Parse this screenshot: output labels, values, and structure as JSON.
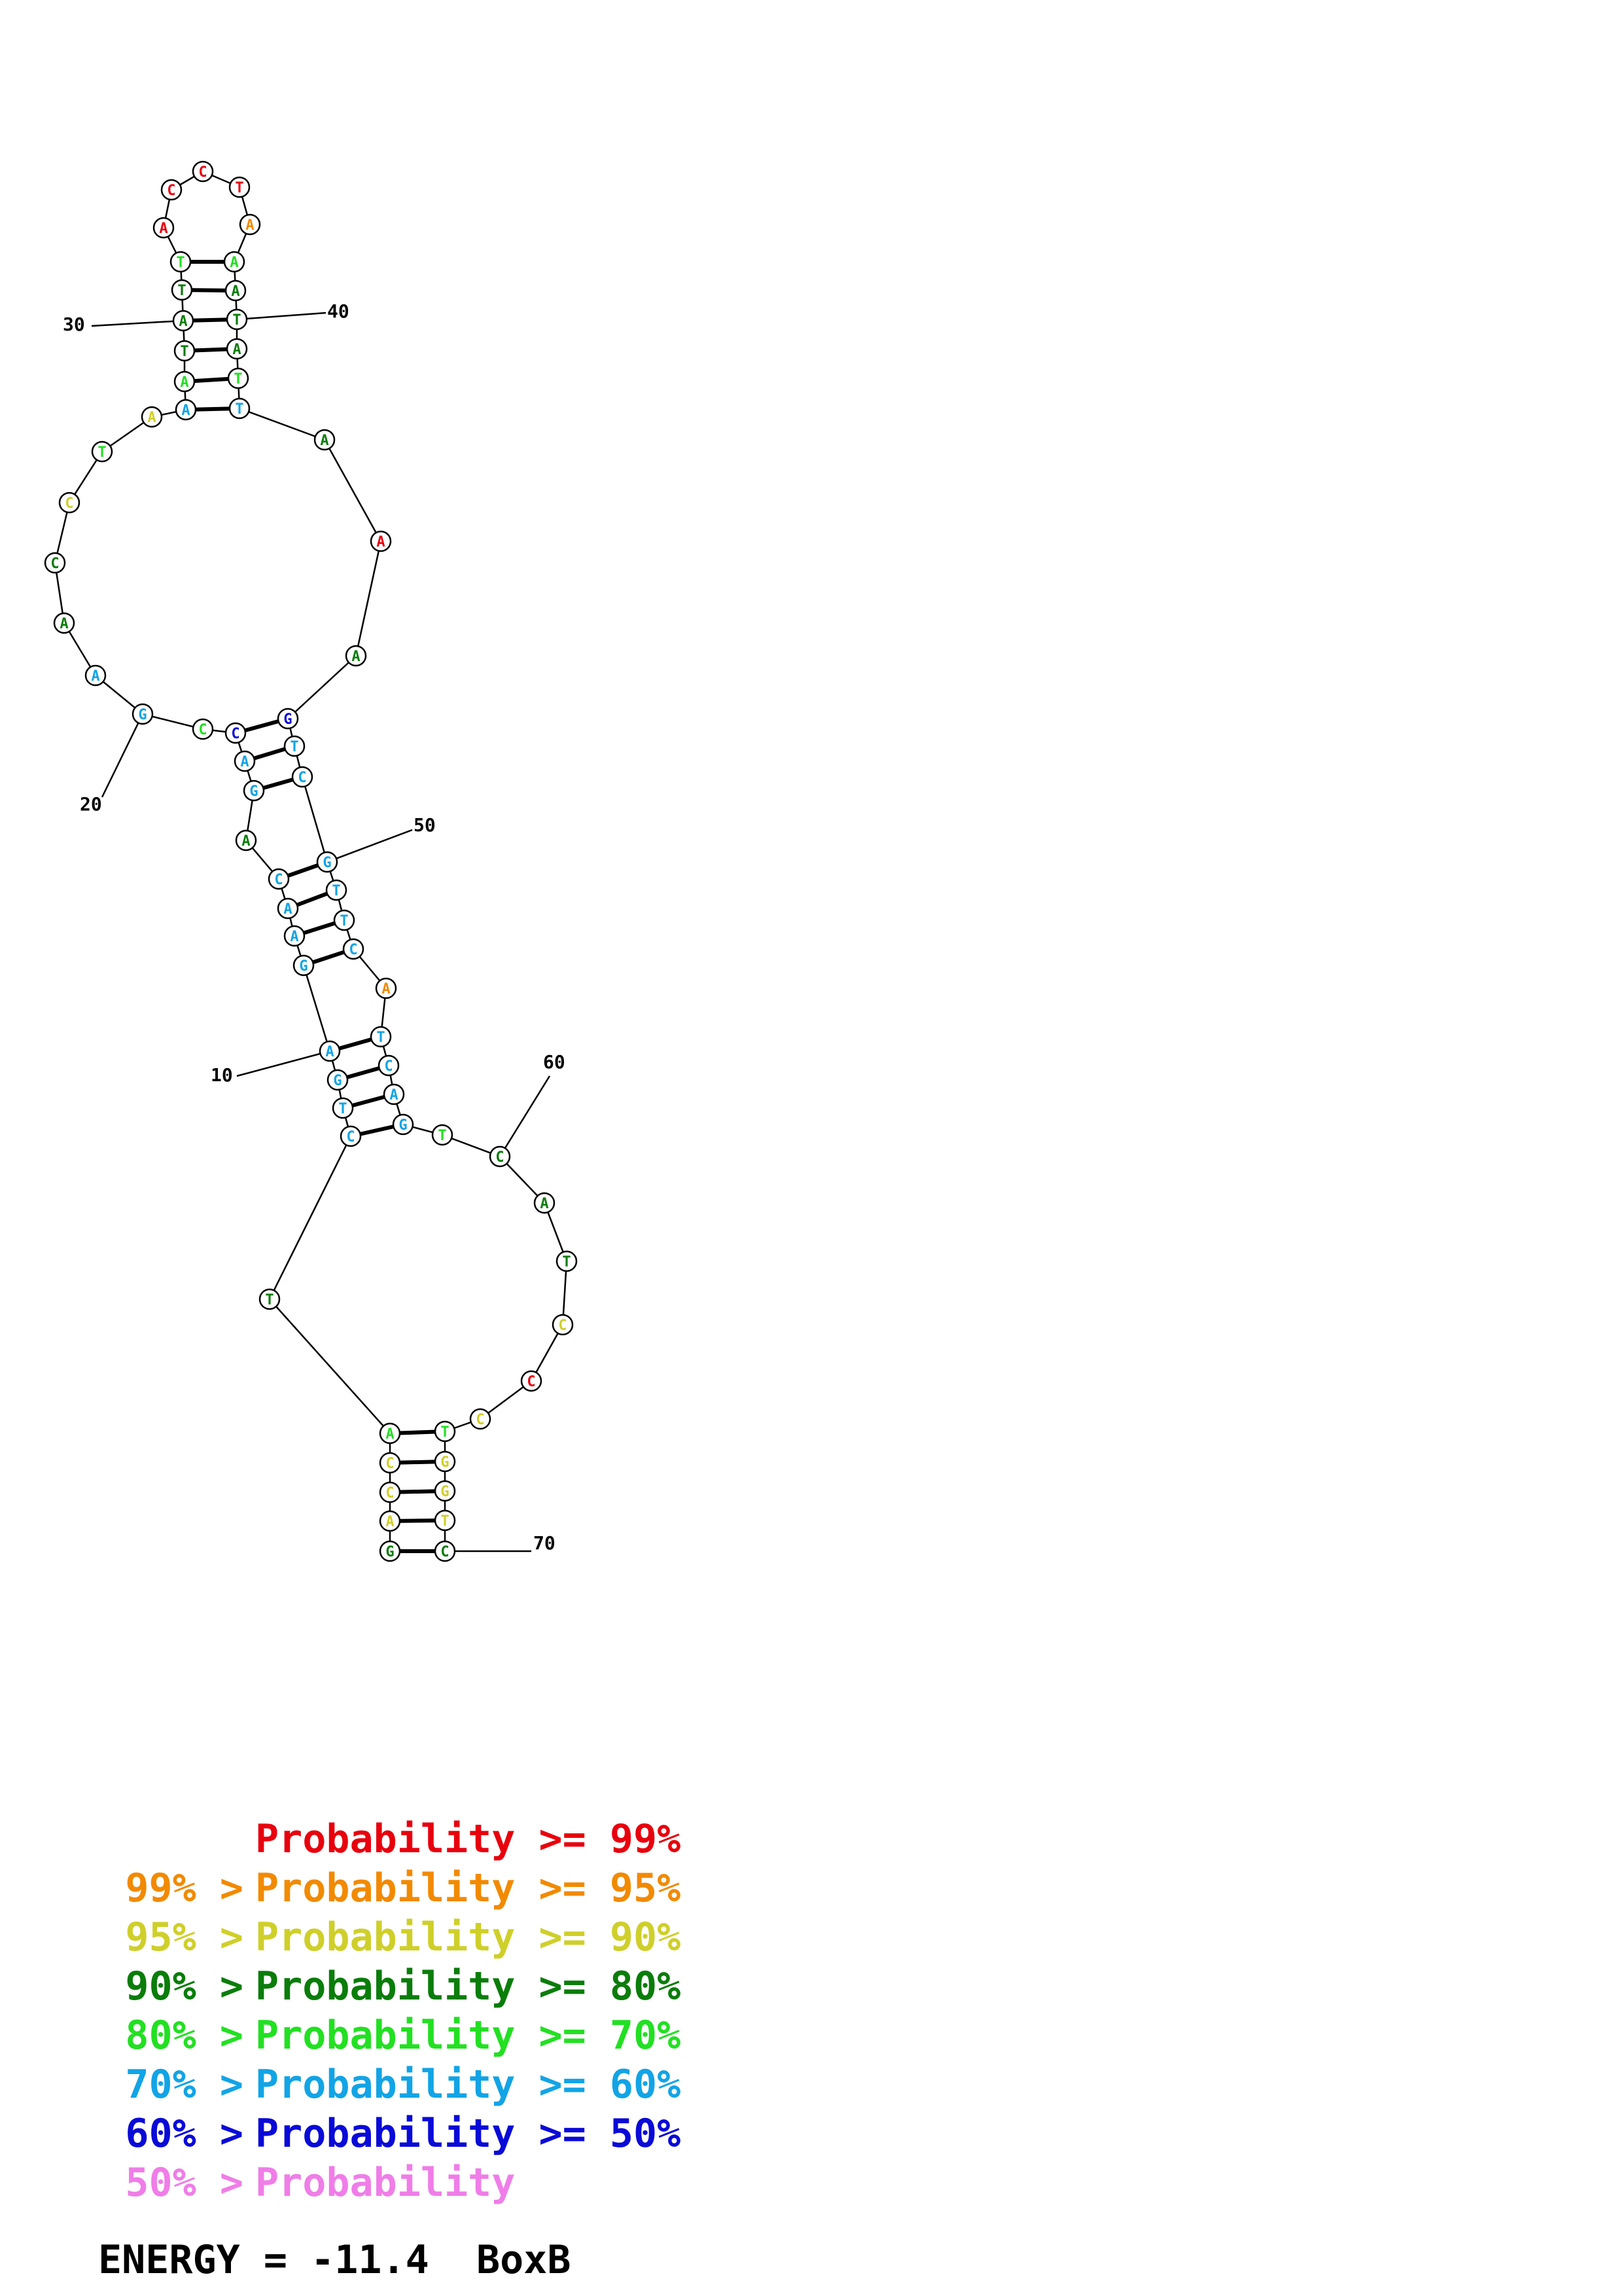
{
  "colors": {
    "red": "#e8000d",
    "orange": "#f28a00",
    "yellow": "#cfcf2a",
    "darkgreen": "#0a7d0a",
    "green": "#22e022",
    "cyan": "#12a4e6",
    "blue": "#0a0ad8",
    "pink": "#f07de8"
  },
  "legend": [
    {
      "left": "",
      "label": "Probability >= 99%",
      "color": "#e8000d"
    },
    {
      "left": "99% >",
      "label": "Probability >= 95%",
      "color": "#f28a00"
    },
    {
      "left": "95% >",
      "label": "Probability >= 90%",
      "color": "#cfcf2a"
    },
    {
      "left": "90% >",
      "label": "Probability >= 80%",
      "color": "#0a7d0a"
    },
    {
      "left": "80% >",
      "label": "Probability >= 70%",
      "color": "#22e022"
    },
    {
      "left": "70% >",
      "label": "Probability >= 60%",
      "color": "#12a4e6"
    },
    {
      "left": "60% >",
      "label": "Probability >= 50%",
      "color": "#0a0ad8"
    },
    {
      "left": "50% >",
      "label": "Probability",
      "color": "#f07de8"
    }
  ],
  "energy_text": "ENERGY = -11.4  BoxB",
  "position_labels": [
    "10",
    "20",
    "30",
    "40",
    "50",
    "60",
    "70"
  ],
  "nucleotides": [
    {
      "n": 1,
      "b": "G",
      "c": "darkgreen"
    },
    {
      "n": 2,
      "b": "A",
      "c": "yellow"
    },
    {
      "n": 3,
      "b": "C",
      "c": "yellow"
    },
    {
      "n": 4,
      "b": "C",
      "c": "yellow"
    },
    {
      "n": 5,
      "b": "A",
      "c": "green"
    },
    {
      "n": 6,
      "b": "T",
      "c": "darkgreen"
    },
    {
      "n": 7,
      "b": "C",
      "c": "cyan"
    },
    {
      "n": 8,
      "b": "T",
      "c": "cyan"
    },
    {
      "n": 9,
      "b": "G",
      "c": "cyan"
    },
    {
      "n": 10,
      "b": "A",
      "c": "cyan"
    },
    {
      "n": 11,
      "b": "G",
      "c": "cyan"
    },
    {
      "n": 12,
      "b": "A",
      "c": "cyan"
    },
    {
      "n": 13,
      "b": "A",
      "c": "cyan"
    },
    {
      "n": 14,
      "b": "C",
      "c": "cyan"
    },
    {
      "n": 15,
      "b": "A",
      "c": "darkgreen"
    },
    {
      "n": 16,
      "b": "G",
      "c": "cyan"
    },
    {
      "n": 17,
      "b": "A",
      "c": "cyan"
    },
    {
      "n": 18,
      "b": "C",
      "c": "blue"
    },
    {
      "n": 19,
      "b": "C",
      "c": "green"
    },
    {
      "n": 20,
      "b": "G",
      "c": "cyan"
    },
    {
      "n": 21,
      "b": "A",
      "c": "cyan"
    },
    {
      "n": 22,
      "b": "A",
      "c": "darkgreen"
    },
    {
      "n": 23,
      "b": "C",
      "c": "darkgreen"
    },
    {
      "n": 24,
      "b": "C",
      "c": "yellow"
    },
    {
      "n": 25,
      "b": "T",
      "c": "green"
    },
    {
      "n": 26,
      "b": "A",
      "c": "yellow"
    },
    {
      "n": 27,
      "b": "A",
      "c": "cyan"
    },
    {
      "n": 28,
      "b": "A",
      "c": "green"
    },
    {
      "n": 29,
      "b": "T",
      "c": "darkgreen"
    },
    {
      "n": 30,
      "b": "A",
      "c": "darkgreen"
    },
    {
      "n": 31,
      "b": "T",
      "c": "darkgreen"
    },
    {
      "n": 32,
      "b": "T",
      "c": "green"
    },
    {
      "n": 33,
      "b": "A",
      "c": "red"
    },
    {
      "n": 34,
      "b": "C",
      "c": "red"
    },
    {
      "n": 35,
      "b": "C",
      "c": "red"
    },
    {
      "n": 36,
      "b": "T",
      "c": "red"
    },
    {
      "n": 37,
      "b": "A",
      "c": "orange"
    },
    {
      "n": 38,
      "b": "A",
      "c": "green"
    },
    {
      "n": 39,
      "b": "A",
      "c": "darkgreen"
    },
    {
      "n": 40,
      "b": "T",
      "c": "darkgreen"
    },
    {
      "n": 41,
      "b": "A",
      "c": "darkgreen"
    },
    {
      "n": 42,
      "b": "T",
      "c": "green"
    },
    {
      "n": 43,
      "b": "T",
      "c": "cyan"
    },
    {
      "n": 44,
      "b": "A",
      "c": "darkgreen"
    },
    {
      "n": 45,
      "b": "A",
      "c": "red"
    },
    {
      "n": 46,
      "b": "A",
      "c": "darkgreen"
    },
    {
      "n": 47,
      "b": "G",
      "c": "blue"
    },
    {
      "n": 48,
      "b": "T",
      "c": "cyan"
    },
    {
      "n": 49,
      "b": "C",
      "c": "cyan"
    },
    {
      "n": 50,
      "b": "G",
      "c": "cyan"
    },
    {
      "n": 51,
      "b": "T",
      "c": "cyan"
    },
    {
      "n": 52,
      "b": "T",
      "c": "cyan"
    },
    {
      "n": 53,
      "b": "C",
      "c": "cyan"
    },
    {
      "n": 54,
      "b": "A",
      "c": "orange"
    },
    {
      "n": 55,
      "b": "T",
      "c": "cyan"
    },
    {
      "n": 56,
      "b": "C",
      "c": "cyan"
    },
    {
      "n": 57,
      "b": "A",
      "c": "cyan"
    },
    {
      "n": 58,
      "b": "G",
      "c": "cyan"
    },
    {
      "n": 59,
      "b": "T",
      "c": "green"
    },
    {
      "n": 60,
      "b": "C",
      "c": "darkgreen"
    },
    {
      "n": 61,
      "b": "A",
      "c": "darkgreen"
    },
    {
      "n": 62,
      "b": "T",
      "c": "darkgreen"
    },
    {
      "n": 63,
      "b": "C",
      "c": "yellow"
    },
    {
      "n": 64,
      "b": "C",
      "c": "red"
    },
    {
      "n": 65,
      "b": "C",
      "c": "yellow"
    },
    {
      "n": 66,
      "b": "T",
      "c": "green"
    },
    {
      "n": 67,
      "b": "G",
      "c": "yellow"
    },
    {
      "n": 68,
      "b": "G",
      "c": "yellow"
    },
    {
      "n": 69,
      "b": "T",
      "c": "yellow"
    },
    {
      "n": 70,
      "b": "C",
      "c": "darkgreen"
    }
  ],
  "base_pairs": [
    [
      1,
      70
    ],
    [
      2,
      69
    ],
    [
      3,
      68
    ],
    [
      4,
      67
    ],
    [
      5,
      66
    ],
    [
      7,
      58
    ],
    [
      8,
      57
    ],
    [
      9,
      56
    ],
    [
      10,
      55
    ],
    [
      11,
      53
    ],
    [
      12,
      52
    ],
    [
      13,
      51
    ],
    [
      14,
      50
    ],
    [
      16,
      49
    ],
    [
      17,
      48
    ],
    [
      18,
      47
    ],
    [
      27,
      43
    ],
    [
      28,
      42
    ],
    [
      29,
      41
    ],
    [
      30,
      40
    ],
    [
      31,
      39
    ],
    [
      32,
      38
    ]
  ]
}
